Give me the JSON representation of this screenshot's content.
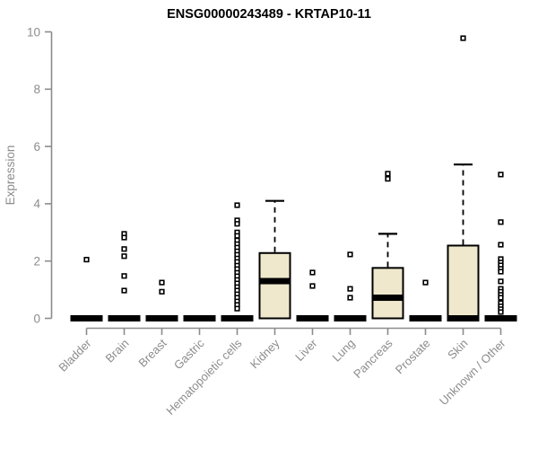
{
  "title": "ENSG00000243489 - KRTAP10-11",
  "chart_data": {
    "type": "boxplot",
    "title": "ENSG00000243489 - KRTAP10-11",
    "xlabel": "",
    "ylabel": "Expression",
    "ylim": [
      0,
      10
    ],
    "yticks": [
      0,
      2,
      4,
      6,
      8,
      10
    ],
    "grid": false,
    "legend": false,
    "categories": [
      "Bladder",
      "Brain",
      "Breast",
      "Gastric",
      "Hematopoietic cells",
      "Kidney",
      "Liver",
      "Lung",
      "Pancreas",
      "Prostate",
      "Skin",
      "Unknown / Other"
    ],
    "boxes": [
      {
        "category": "Bladder",
        "q1": 0,
        "median": 0,
        "q3": 0,
        "whisker_low": 0,
        "whisker_high": 0,
        "outliers": [
          2.05
        ]
      },
      {
        "category": "Brain",
        "q1": 0,
        "median": 0,
        "q3": 0,
        "whisker_low": 0,
        "whisker_high": 0,
        "outliers": [
          2.95,
          2.82,
          2.42,
          2.17,
          1.48,
          0.97
        ]
      },
      {
        "category": "Breast",
        "q1": 0,
        "median": 0,
        "q3": 0,
        "whisker_low": 0,
        "whisker_high": 0,
        "outliers": [
          1.25,
          0.93
        ]
      },
      {
        "category": "Gastric",
        "q1": 0,
        "median": 0,
        "q3": 0,
        "whisker_low": 0,
        "whisker_high": 0,
        "outliers": []
      },
      {
        "category": "Hematopoietic cells",
        "q1": 0,
        "median": 0,
        "q3": 0,
        "whisker_low": 0,
        "whisker_high": 0,
        "outliers": [
          3.95,
          3.42,
          3.3,
          3.0,
          2.88,
          2.72,
          2.59,
          2.47,
          2.34,
          2.22,
          2.09,
          1.97,
          1.84,
          1.72,
          1.59,
          1.47,
          1.34,
          1.22,
          1.09,
          0.97,
          0.84,
          0.72,
          0.59,
          0.47,
          0.34
        ]
      },
      {
        "category": "Kidney",
        "q1": 0,
        "median": 1.3,
        "q3": 2.28,
        "whisker_low": 0,
        "whisker_high": 4.1,
        "outliers": []
      },
      {
        "category": "Liver",
        "q1": 0,
        "median": 0,
        "q3": 0,
        "whisker_low": 0,
        "whisker_high": 0,
        "outliers": [
          1.6,
          1.13
        ]
      },
      {
        "category": "Lung",
        "q1": 0,
        "median": 0,
        "q3": 0,
        "whisker_low": 0,
        "whisker_high": 0,
        "outliers": [
          2.23,
          1.03,
          0.72
        ]
      },
      {
        "category": "Pancreas",
        "q1": 0,
        "median": 0.72,
        "q3": 1.76,
        "whisker_low": 0,
        "whisker_high": 2.95,
        "outliers": [
          5.05,
          4.87
        ]
      },
      {
        "category": "Prostate",
        "q1": 0,
        "median": 0,
        "q3": 0,
        "whisker_low": 0,
        "whisker_high": 0,
        "outliers": [
          1.25
        ]
      },
      {
        "category": "Skin",
        "q1": 0,
        "median": 0,
        "q3": 2.54,
        "whisker_low": 0,
        "whisker_high": 5.37,
        "outliers": [
          9.78
        ]
      },
      {
        "category": "Unknown / Other",
        "q1": 0,
        "median": 0,
        "q3": 0,
        "whisker_low": 0,
        "whisker_high": 0,
        "outliers": [
          5.02,
          3.36,
          2.57,
          2.07,
          1.95,
          1.85,
          1.73,
          1.63,
          1.29,
          1.03,
          0.93,
          0.82,
          0.72,
          0.53,
          0.42,
          0.32,
          0.22
        ]
      }
    ],
    "colors": {
      "box_fill": "#efe8cc",
      "box_border": "#000000",
      "median": "#000000",
      "whisker": "#000000",
      "outlier_fill": "#ffffff",
      "outlier_border": "#000000",
      "axis": "#8c8c8c",
      "background": "#ffffff",
      "title": "#000000"
    }
  }
}
